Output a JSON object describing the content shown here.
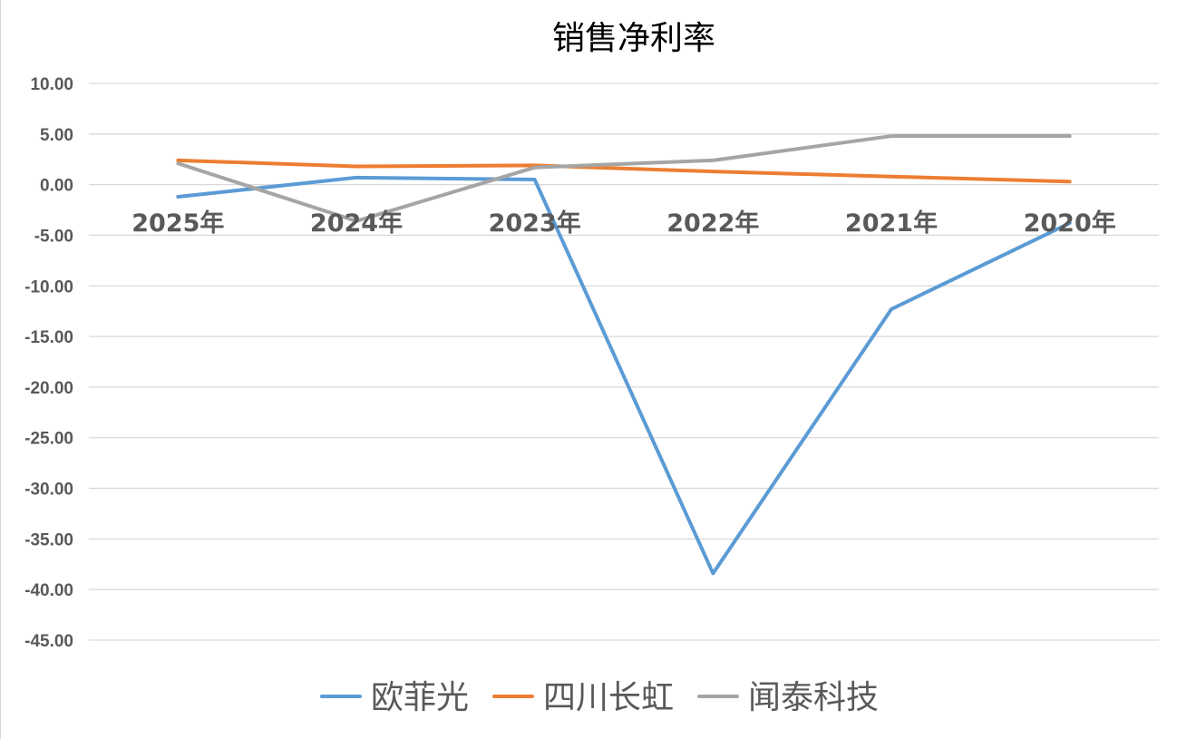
{
  "chart_data": {
    "type": "line",
    "title": "销售净利率",
    "xlabel": "",
    "ylabel": "",
    "categories": [
      "2025年",
      "2024年",
      "2023年",
      "2022年",
      "2021年",
      "2020年"
    ],
    "ylim": [
      -45,
      10
    ],
    "ytick_step": 5,
    "y_tick_labels": [
      "10.00",
      "5.00",
      "0.00",
      "-5.00",
      "-10.00",
      "-15.00",
      "-20.00",
      "-25.00",
      "-30.00",
      "-35.00",
      "-40.00",
      "-45.00"
    ],
    "grid": true,
    "legend_position": "bottom",
    "series": [
      {
        "name": "欧菲光",
        "color": "#5b9bd5",
        "values": [
          -1.2,
          0.7,
          0.5,
          -38.4,
          -12.3,
          -3.8
        ]
      },
      {
        "name": "四川长虹",
        "color": "#ed7d31",
        "values": [
          2.4,
          1.8,
          1.9,
          1.3,
          0.8,
          0.3
        ]
      },
      {
        "name": "闻泰科技",
        "color": "#a5a5a5",
        "values": [
          2.1,
          -3.6,
          1.7,
          2.4,
          4.8,
          4.8
        ]
      }
    ]
  }
}
